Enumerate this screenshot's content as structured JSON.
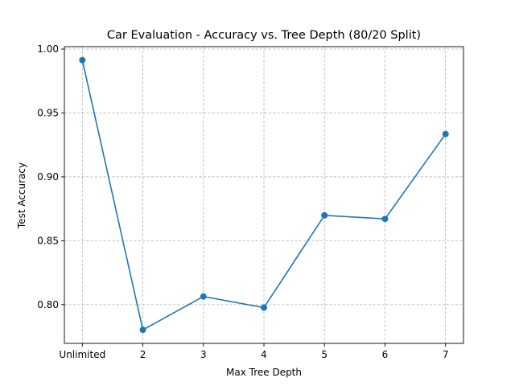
{
  "chart_data": {
    "type": "line",
    "title": "Car Evaluation - Accuracy vs. Tree Depth (80/20 Split)",
    "xlabel": "Max Tree Depth",
    "ylabel": "Test Accuracy",
    "categories": [
      "Unlimited",
      "2",
      "3",
      "4",
      "5",
      "6",
      "7"
    ],
    "series": [
      {
        "name": "",
        "values": [
          0.9913,
          0.7803,
          0.8064,
          0.7977,
          0.8699,
          0.8671,
          0.9335
        ],
        "color": "#1f77b4",
        "marker": "circle"
      }
    ],
    "ylim": [
      0.7697,
      1.0019
    ],
    "yticks": [
      0.8,
      0.85,
      0.9,
      0.95,
      1.0
    ],
    "ytick_labels": [
      "0.80",
      "0.85",
      "0.90",
      "0.95",
      "1.00"
    ],
    "grid": true,
    "legend": false
  }
}
